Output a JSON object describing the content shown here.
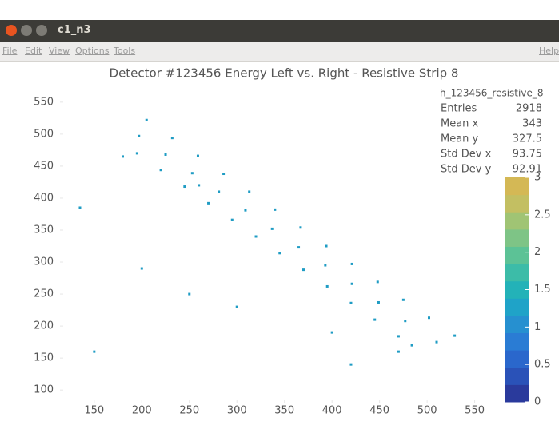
{
  "window": {
    "title": "c1_n3",
    "menu": [
      "File",
      "Edit",
      "View",
      "Options",
      "Tools"
    ],
    "help": "Help"
  },
  "stats": {
    "name": "h_123456_resistive_8",
    "rows": [
      {
        "label": "Entries",
        "value": 2918
      },
      {
        "label": "Mean x",
        "value": 343
      },
      {
        "label": "Mean y",
        "value": 327.5
      },
      {
        "label": "Std Dev x",
        "value": 93.75
      },
      {
        "label": "Std Dev y",
        "value": 92.91
      }
    ]
  },
  "chart_data": {
    "type": "scatter",
    "title": "Detector #123456 Energy Left vs. Right - Resistive Strip 8",
    "xlim": [
      114,
      568
    ],
    "ylim": [
      79,
      591
    ],
    "xticks": [
      150,
      200,
      250,
      300,
      350,
      400,
      450,
      500,
      550
    ],
    "yticks": [
      100,
      150,
      200,
      250,
      300,
      350,
      400,
      450,
      500,
      550
    ],
    "zlim": [
      0,
      3
    ],
    "zticks": [
      0,
      0.5,
      1,
      1.5,
      2,
      2.5,
      3
    ],
    "color": "#1f9cc4",
    "x": [
      205,
      232,
      259,
      286,
      313,
      340,
      367,
      394,
      421,
      448,
      475,
      502,
      529,
      197,
      225,
      253,
      281,
      309,
      337,
      365,
      393,
      421,
      449,
      477,
      510,
      195,
      220,
      245,
      270,
      295,
      320,
      345,
      370,
      395,
      420,
      445,
      470,
      484,
      135,
      200,
      150,
      260,
      420,
      470,
      250,
      300,
      400,
      180
    ],
    "values": [
      522,
      494,
      466,
      438,
      410,
      382,
      354,
      325,
      297,
      269,
      241,
      213,
      185,
      497,
      468,
      439,
      410,
      381,
      352,
      323,
      295,
      266,
      237,
      208,
      175,
      470,
      444,
      418,
      392,
      366,
      340,
      314,
      288,
      262,
      236,
      210,
      184,
      170,
      385,
      290,
      160,
      420,
      140,
      160,
      250,
      230,
      190,
      465
    ]
  }
}
